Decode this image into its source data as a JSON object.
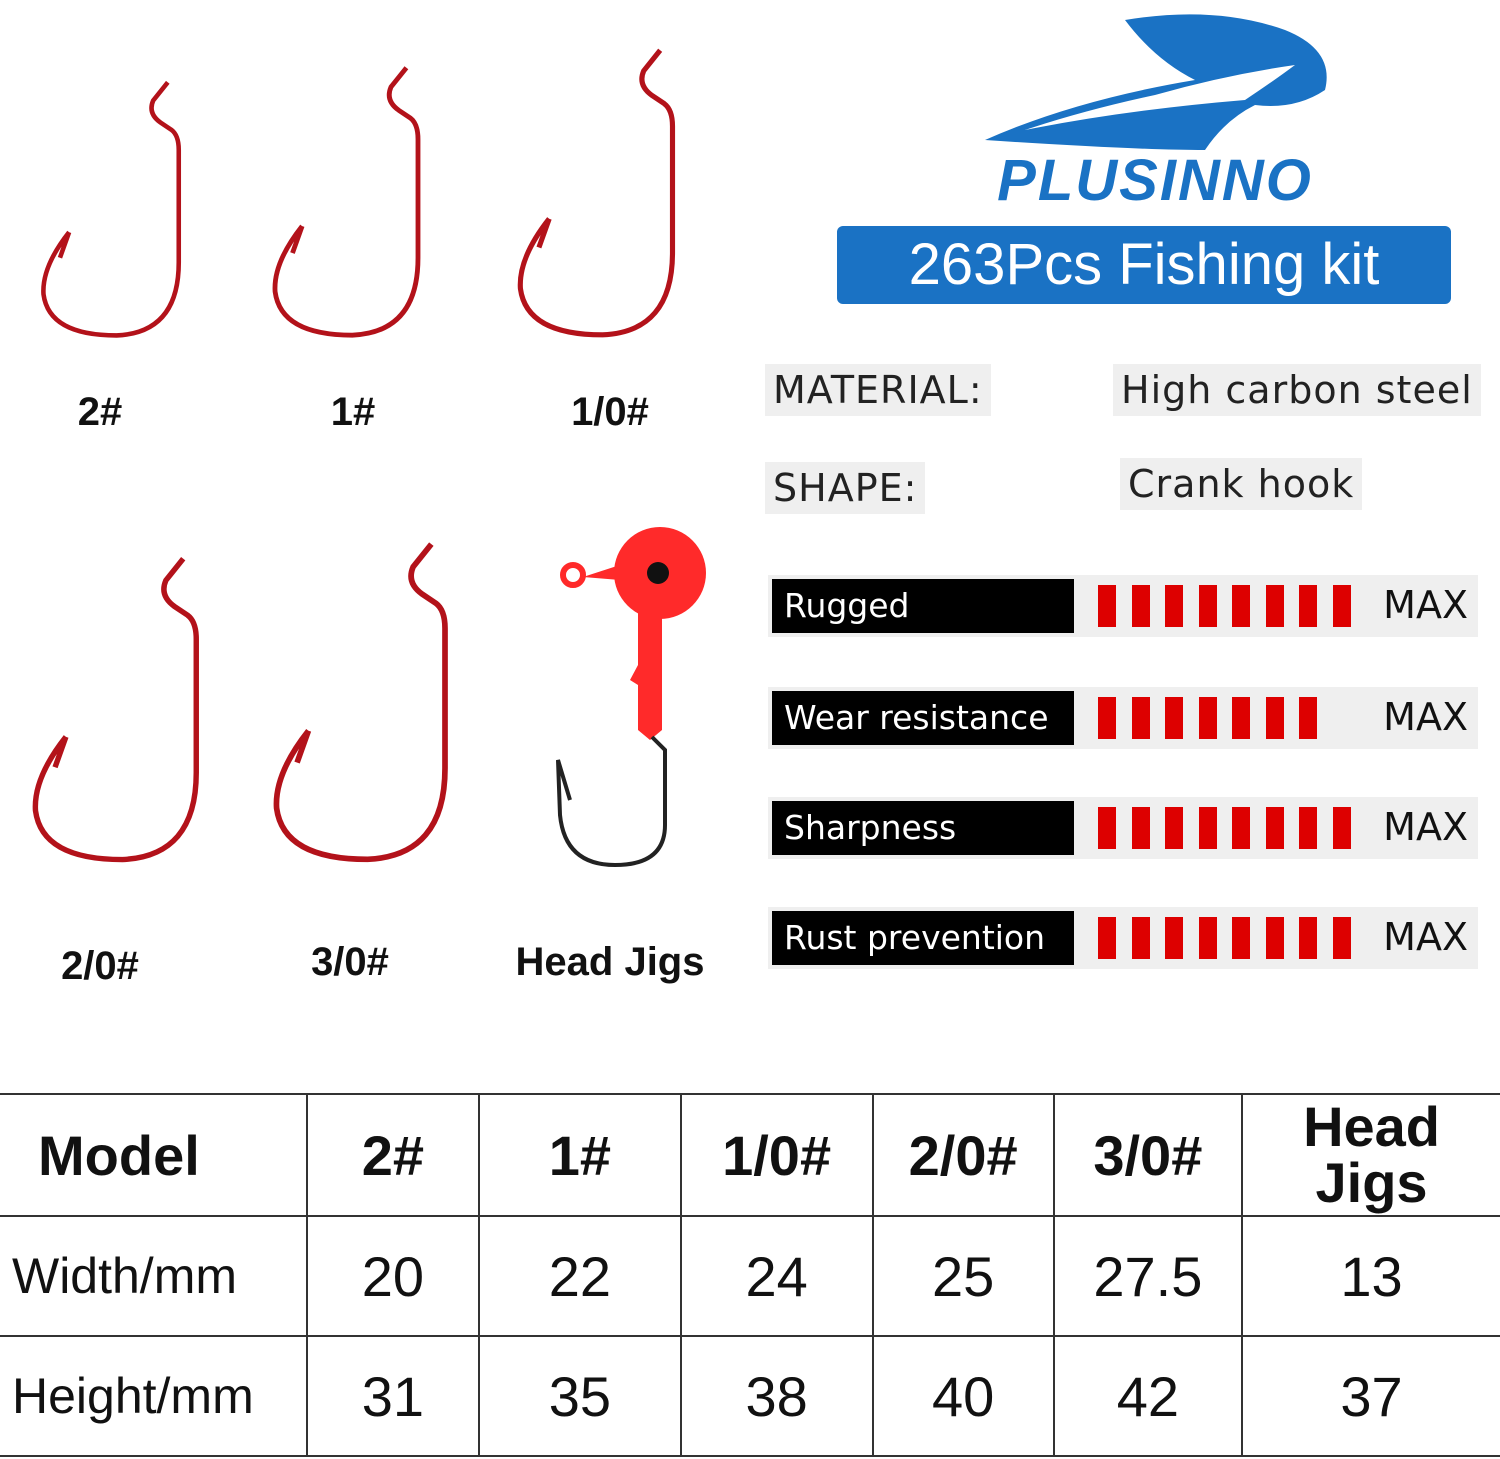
{
  "brand": {
    "name": "PLUSINNO",
    "banner": "263Pcs Fishing kit",
    "color": "#1a72c4"
  },
  "products": [
    {
      "label": "2#"
    },
    {
      "label": "1#"
    },
    {
      "label": "1/0#"
    },
    {
      "label": "2/0#"
    },
    {
      "label": "3/0#"
    },
    {
      "label": "Head Jigs"
    }
  ],
  "specs": {
    "material_label": "MATERIAL:",
    "material_value": "High carbon steel",
    "shape_label": "SHAPE:",
    "shape_value": "Crank hook"
  },
  "ratings": [
    {
      "label": "Rugged",
      "filled": 8,
      "max_label": "MAX"
    },
    {
      "label": "Wear resistance",
      "filled": 7,
      "max_label": "MAX"
    },
    {
      "label": "Sharpness",
      "filled": 8,
      "max_label": "MAX"
    },
    {
      "label": "Rust prevention",
      "filled": 8,
      "max_label": "MAX"
    }
  ],
  "colors": {
    "hook": "#b3121a",
    "bar": "#dd0000",
    "jig": "#ff2a2a"
  },
  "table": {
    "headers": [
      "Model",
      "2#",
      "1#",
      "1/0#",
      "2/0#",
      "3/0#",
      "Head Jigs"
    ],
    "rows": [
      [
        "Width/mm",
        "20",
        "22",
        "24",
        "25",
        "27.5",
        "13"
      ],
      [
        "Height/mm",
        "31",
        "35",
        "38",
        "40",
        "42",
        "37"
      ]
    ]
  }
}
